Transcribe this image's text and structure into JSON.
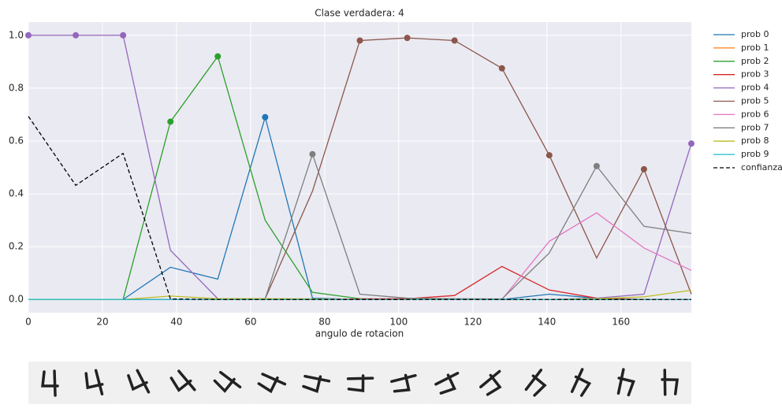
{
  "chart_data": {
    "type": "line",
    "title": "Clase verdadera: 4",
    "x_label": "angulo de rotacion",
    "x": [
      0,
      12.79,
      25.57,
      38.36,
      51.14,
      63.93,
      76.71,
      89.5,
      102.29,
      115.07,
      127.86,
      140.64,
      153.43,
      166.21,
      179
    ],
    "series": [
      {
        "name": "prob 0",
        "color": "#1f77b4",
        "values": [
          0,
          0,
          0,
          0.122,
          0.077,
          0.69,
          0.005,
          0,
          0,
          0,
          0,
          0.02,
          0.005,
          0,
          0
        ]
      },
      {
        "name": "prob 1",
        "color": "#ff7f0e",
        "values": [
          0,
          0,
          0,
          0,
          0,
          0,
          0,
          0,
          0,
          0,
          0,
          0,
          0,
          0,
          0
        ]
      },
      {
        "name": "prob 2",
        "color": "#2ca02c",
        "values": [
          0,
          0,
          0,
          0.673,
          0.92,
          0.3,
          0.027,
          0.003,
          0,
          0,
          0,
          0,
          0,
          0,
          0
        ]
      },
      {
        "name": "prob 3",
        "color": "#d62728",
        "values": [
          0,
          0,
          0,
          0,
          0,
          0,
          0,
          0.002,
          0.003,
          0.015,
          0.125,
          0.036,
          0.005,
          0,
          0
        ]
      },
      {
        "name": "prob 4",
        "color": "#9467bd",
        "values": [
          1,
          1,
          1,
          0.186,
          0.003,
          0.002,
          0.002,
          0,
          0,
          0,
          0,
          0,
          0.005,
          0.02,
          0.59
        ]
      },
      {
        "name": "prob 5",
        "color": "#8c564b",
        "values": [
          0,
          0,
          0,
          0,
          0,
          0.003,
          0.41,
          0.98,
          0.99,
          0.98,
          0.875,
          0.546,
          0.157,
          0.493,
          0.02
        ]
      },
      {
        "name": "prob 6",
        "color": "#e377c2",
        "values": [
          0,
          0,
          0,
          0,
          0,
          0,
          0,
          0,
          0,
          0,
          0,
          0.22,
          0.328,
          0.195,
          0.11
        ]
      },
      {
        "name": "prob 7",
        "color": "#7f7f7f",
        "values": [
          0,
          0,
          0,
          0,
          0,
          0.003,
          0.55,
          0.02,
          0.005,
          0.003,
          0.002,
          0.176,
          0.505,
          0.277,
          0.25
        ]
      },
      {
        "name": "prob 8",
        "color": "#bcbd22",
        "values": [
          0,
          0,
          0,
          0.013,
          0.003,
          0.003,
          0.002,
          0,
          0,
          0,
          0,
          0,
          0.003,
          0.01,
          0.035
        ]
      },
      {
        "name": "prob 9",
        "color": "#17becf",
        "values": [
          0,
          0,
          0,
          0,
          0,
          0,
          0,
          0,
          0,
          0,
          0,
          0,
          0,
          0,
          0
        ]
      },
      {
        "name": "confianza",
        "color": "#000000",
        "dashed": true,
        "values": [
          0.693,
          0.432,
          0.553,
          0.002,
          0,
          0,
          0,
          0,
          0,
          0,
          0,
          0,
          0,
          0,
          0
        ]
      }
    ],
    "xlim": [
      0,
      179
    ],
    "ylim": [
      -0.05,
      1.05
    ],
    "xticks": [
      0,
      20,
      40,
      60,
      80,
      100,
      120,
      140,
      160
    ],
    "yticks": [
      {
        "value": 0,
        "label": "0.0"
      },
      0.2,
      0.4,
      0.6,
      0.8,
      {
        "value": 1,
        "label": "1.0"
      }
    ],
    "grid": true,
    "legend": "outside right"
  }
}
